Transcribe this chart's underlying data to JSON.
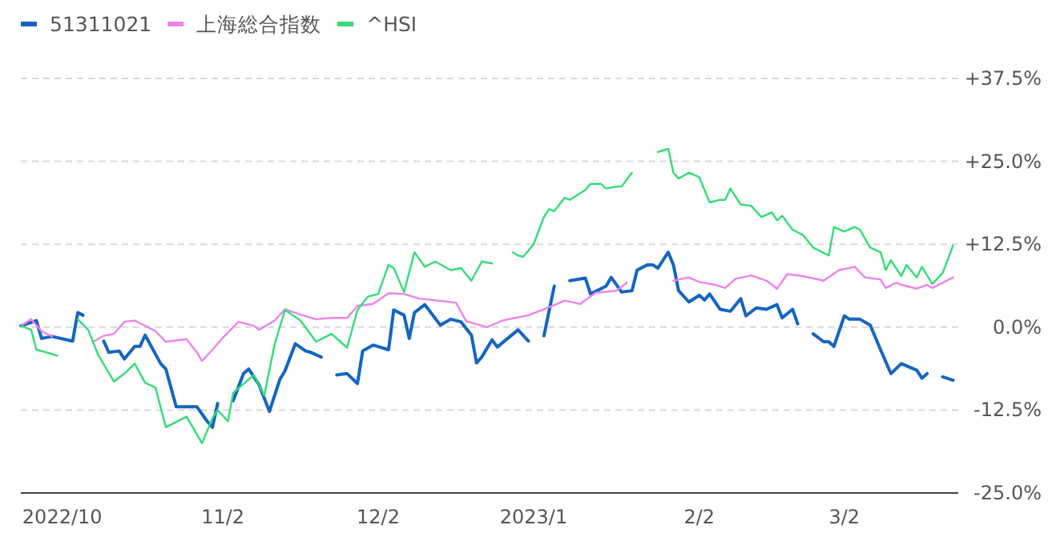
{
  "chart_data": {
    "type": "line",
    "legend": "top left",
    "grid": "y",
    "line_style": "solid",
    "marker": "none",
    "xlim": [
      "2022-09-24",
      "2023-03-24"
    ],
    "xticks": [
      {
        "value": "2022-10-02",
        "label": "2022/10"
      },
      {
        "value": "2022-11-02",
        "label": "11/2"
      },
      {
        "value": "2022-12-02",
        "label": "12/2"
      },
      {
        "value": "2023-01-01",
        "label": "2023/1"
      },
      {
        "value": "2023-02-02",
        "label": "2/2"
      },
      {
        "value": "2023-03-02",
        "label": "3/2"
      }
    ],
    "ylim": [
      -25,
      37.5
    ],
    "yticks": [
      {
        "value": -25,
        "label": "-25.0%"
      },
      {
        "value": -12.5,
        "label": "-12.5%"
      },
      {
        "value": 0,
        "label": "0.0%"
      },
      {
        "value": 12.5,
        "label": "+12.5%"
      },
      {
        "value": 25,
        "label": "+25.0%"
      },
      {
        "value": 37.5,
        "label": "+37.5%"
      }
    ],
    "series": [
      {
        "name": "51311021",
        "color": "#1565c0",
        "x": [
          "2022-09-24",
          "2022-09-27",
          "2022-09-28",
          "2022-09-30",
          "2022-10-04",
          "2022-10-05",
          "2022-10-06",
          "2022-10-08",
          "2022-10-10",
          "2022-10-11",
          "2022-10-13",
          "2022-10-14",
          "2022-10-16",
          "2022-10-17",
          "2022-10-18",
          "2022-10-21",
          "2022-10-22",
          "2022-10-24",
          "2022-10-28",
          "2022-10-30",
          "2022-10-31",
          "2022-11-01",
          "2022-11-03",
          "2022-11-04",
          "2022-11-06",
          "2022-11-07",
          "2022-11-09",
          "2022-11-11",
          "2022-11-13",
          "2022-11-14",
          "2022-11-16",
          "2022-11-18",
          "2022-11-19",
          "2022-11-21",
          "2022-11-23",
          "2022-11-24",
          "2022-11-26",
          "2022-11-28",
          "2022-11-29",
          "2022-12-01",
          "2022-12-04",
          "2022-12-05",
          "2022-12-07",
          "2022-12-08",
          "2022-12-09",
          "2022-12-11",
          "2022-12-14",
          "2022-12-16",
          "2022-12-18",
          "2022-12-20",
          "2022-12-21",
          "2022-12-22",
          "2022-12-24",
          "2022-12-25",
          "2022-12-29",
          "2022-12-31",
          "2023-01-02",
          "2023-01-03",
          "2023-01-05",
          "2023-01-07",
          "2023-01-08",
          "2023-01-11",
          "2023-01-12",
          "2023-01-15",
          "2023-01-16",
          "2023-01-18",
          "2023-01-20",
          "2023-01-21",
          "2023-01-23",
          "2023-01-24",
          "2023-01-25",
          "2023-01-27",
          "2023-01-28",
          "2023-01-29",
          "2023-01-31",
          "2023-02-02",
          "2023-02-03",
          "2023-02-04",
          "2023-02-06",
          "2023-02-08",
          "2023-02-10",
          "2023-02-11",
          "2023-02-13",
          "2023-02-15",
          "2023-02-17",
          "2023-02-18",
          "2023-02-20",
          "2023-02-21",
          "2023-02-23",
          "2023-02-24",
          "2023-02-26",
          "2023-02-27",
          "2023-02-28",
          "2023-03-02",
          "2023-03-03",
          "2023-03-05",
          "2023-03-07",
          "2023-03-09",
          "2023-03-11",
          "2023-03-13",
          "2023-03-16",
          "2023-03-17",
          "2023-03-18",
          "2023-03-20",
          "2023-03-21",
          "2023-03-23"
        ],
        "values": [
          0.2,
          1.0,
          -1.7,
          -1.4,
          -2.1,
          2.2,
          1.8,
          null,
          -2.1,
          -3.8,
          -3.6,
          -4.8,
          -2.9,
          -2.9,
          -1.2,
          -5.5,
          -6.3,
          -12.0,
          -12.0,
          -14.2,
          -15.1,
          -11.5,
          null,
          -11.1,
          -7.0,
          -6.3,
          -8.7,
          -12.7,
          -7.9,
          -6.6,
          -2.5,
          -3.6,
          -3.8,
          -4.5,
          null,
          -7.2,
          -7.0,
          -8.5,
          -3.6,
          -2.7,
          -3.4,
          2.6,
          1.8,
          -1.7,
          2.2,
          3.4,
          0.3,
          1.2,
          0.8,
          -1.2,
          -5.4,
          -4.5,
          -1.9,
          -3.0,
          -0.4,
          -2.1,
          null,
          -1.3,
          6.2,
          null,
          7.0,
          7.4,
          5.0,
          6.2,
          7.5,
          5.3,
          5.5,
          8.6,
          9.4,
          9.4,
          8.9,
          11.3,
          9.4,
          5.5,
          3.8,
          4.8,
          4.1,
          5.0,
          2.7,
          2.4,
          4.3,
          1.7,
          2.9,
          2.7,
          3.4,
          1.4,
          2.7,
          0.5,
          null,
          -1.0,
          -2.2,
          -2.2,
          -2.9,
          1.7,
          1.2,
          1.2,
          0.3,
          -3.4,
          -7.0,
          -5.5,
          -6.5,
          -7.7,
          -7.0,
          null,
          -7.5,
          -8.0
        ]
      },
      {
        "name": "上海総合指数",
        "color": "#ee82ee",
        "x": [
          "2022-09-24",
          "2022-09-26",
          "2022-09-28",
          "2022-09-30",
          "2022-10-04",
          "2022-10-08",
          "2022-10-10",
          "2022-10-12",
          "2022-10-14",
          "2022-10-16",
          "2022-10-18",
          "2022-10-20",
          "2022-10-22",
          "2022-10-26",
          "2022-10-28",
          "2022-10-29",
          "2022-10-31",
          "2022-11-02",
          "2022-11-05",
          "2022-11-08",
          "2022-11-09",
          "2022-11-12",
          "2022-11-14",
          "2022-11-17",
          "2022-11-20",
          "2022-11-23",
          "2022-11-26",
          "2022-11-28",
          "2022-12-01",
          "2022-12-04",
          "2022-12-07",
          "2022-12-10",
          "2022-12-17",
          "2022-12-19",
          "2022-12-23",
          "2022-12-26",
          "2022-12-31",
          "2023-01-04",
          "2023-01-07",
          "2023-01-10",
          "2023-01-13",
          "2023-01-17",
          "2023-01-19",
          "2023-01-23",
          "2023-01-28",
          "2023-01-31",
          "2023-02-02",
          "2023-02-05",
          "2023-02-07",
          "2023-02-09",
          "2023-02-12",
          "2023-02-15",
          "2023-02-17",
          "2023-02-19",
          "2023-02-22",
          "2023-02-26",
          "2023-03-01",
          "2023-03-04",
          "2023-03-06",
          "2023-03-09",
          "2023-03-10",
          "2023-03-12",
          "2023-03-13",
          "2023-03-16",
          "2023-03-18",
          "2023-03-19",
          "2023-03-23"
        ],
        "values": [
          0.2,
          1.2,
          -0.6,
          -1.4,
          null,
          -2.2,
          -1.3,
          -1.0,
          0.8,
          1.0,
          0.2,
          -0.6,
          -2.2,
          -1.8,
          -3.8,
          -5.1,
          -3.4,
          -1.6,
          0.8,
          0.2,
          -0.4,
          1.0,
          2.7,
          1.9,
          1.2,
          1.4,
          1.4,
          3.2,
          3.5,
          5.1,
          5.0,
          4.3,
          3.7,
          0.9,
          0.0,
          1.0,
          1.8,
          3.0,
          4.0,
          3.5,
          5.2,
          5.5,
          6.7,
          null,
          7.0,
          7.5,
          6.8,
          6.4,
          5.9,
          7.3,
          7.8,
          7.0,
          5.8,
          8.0,
          7.7,
          7.0,
          8.6,
          9.1,
          7.5,
          7.2,
          5.9,
          6.7,
          6.4,
          5.8,
          6.4,
          5.9,
          7.5
        ]
      },
      {
        "name": "^HSI",
        "color": "#33dd77",
        "x": [
          "2022-09-24",
          "2022-09-26",
          "2022-09-27",
          "2022-09-29",
          "2022-10-01",
          "2022-10-03",
          "2022-10-05",
          "2022-10-07",
          "2022-10-09",
          "2022-10-12",
          "2022-10-14",
          "2022-10-16",
          "2022-10-18",
          "2022-10-20",
          "2022-10-22",
          "2022-10-26",
          "2022-10-29",
          "2022-10-31",
          "2022-11-01",
          "2022-11-03",
          "2022-11-04",
          "2022-11-08",
          "2022-11-10",
          "2022-11-12",
          "2022-11-14",
          "2022-11-17",
          "2022-11-20",
          "2022-11-23",
          "2022-11-26",
          "2022-11-28",
          "2022-11-30",
          "2022-12-02",
          "2022-12-04",
          "2022-12-05",
          "2022-12-07",
          "2022-12-09",
          "2022-12-11",
          "2022-12-13",
          "2022-12-16",
          "2022-12-18",
          "2022-12-20",
          "2022-12-22",
          "2022-12-24",
          "2022-12-26",
          "2022-12-28",
          "2022-12-29",
          "2022-12-30",
          "2023-01-01",
          "2023-01-03",
          "2023-01-04",
          "2023-01-05",
          "2023-01-07",
          "2023-01-08",
          "2023-01-11",
          "2023-01-12",
          "2023-01-14",
          "2023-01-15",
          "2023-01-17",
          "2023-01-18",
          "2023-01-20",
          "2023-01-23",
          "2023-01-25",
          "2023-01-27",
          "2023-01-28",
          "2023-01-29",
          "2023-01-31",
          "2023-02-02",
          "2023-02-04",
          "2023-02-06",
          "2023-02-07",
          "2023-02-08",
          "2023-02-10",
          "2023-02-12",
          "2023-02-14",
          "2023-02-16",
          "2023-02-17",
          "2023-02-18",
          "2023-02-20",
          "2023-02-22",
          "2023-02-24",
          "2023-02-27",
          "2023-02-28",
          "2023-03-02",
          "2023-03-04",
          "2023-03-05",
          "2023-03-07",
          "2023-03-09",
          "2023-03-10",
          "2023-03-11",
          "2023-03-13",
          "2023-03-14",
          "2023-03-16",
          "2023-03-17",
          "2023-03-19",
          "2023-03-21",
          "2023-03-23"
        ],
        "values": [
          0.2,
          -0.4,
          -3.4,
          -3.8,
          -4.3,
          null,
          1.2,
          -0.4,
          -4.3,
          -8.2,
          -7.0,
          -5.5,
          -8.4,
          -9.1,
          -15.1,
          -13.5,
          -17.5,
          -13.7,
          -12.5,
          -14.2,
          -9.9,
          -7.2,
          -10.3,
          -2.6,
          2.6,
          1.0,
          -2.2,
          -1.0,
          -3.1,
          2.6,
          4.6,
          5.0,
          9.4,
          8.9,
          5.3,
          11.3,
          9.1,
          9.9,
          8.6,
          8.9,
          7.0,
          9.9,
          9.6,
          null,
          11.3,
          10.8,
          10.6,
          12.5,
          16.6,
          17.8,
          17.5,
          19.5,
          19.2,
          20.7,
          21.6,
          21.6,
          20.9,
          21.2,
          21.2,
          23.3,
          null,
          26.4,
          26.9,
          23.3,
          22.4,
          23.3,
          22.6,
          18.8,
          19.2,
          19.2,
          20.9,
          18.5,
          18.3,
          16.6,
          17.3,
          16.1,
          16.8,
          14.7,
          13.9,
          12.0,
          10.8,
          15.1,
          14.4,
          15.1,
          14.7,
          12.0,
          11.3,
          8.6,
          10.1,
          7.7,
          9.4,
          7.5,
          9.1,
          6.5,
          8.2,
          12.3
        ]
      }
    ]
  }
}
